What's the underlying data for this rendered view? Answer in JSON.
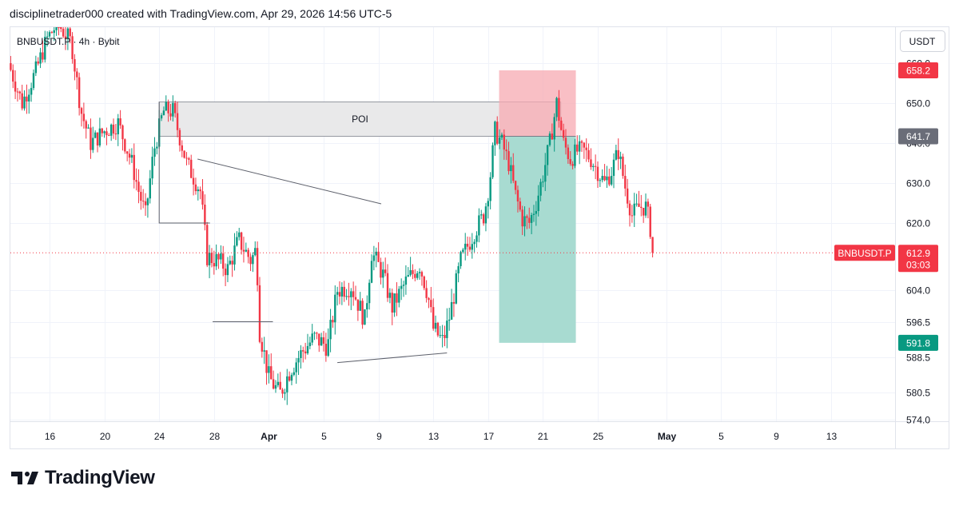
{
  "header": {
    "attribution": "disciplinetrader000 created with TradingView.com, Apr 29, 2026 14:56 UTC-5"
  },
  "footer": {
    "brand": "TradingView"
  },
  "chart_data": {
    "type": "candlestick",
    "legend": "BNBUSDT.P · 4h · Bybit",
    "currency_button": "USDT",
    "price_ticks": [
      {
        "price": 660.0,
        "label": "660.0"
      },
      {
        "price": 650.0,
        "label": "650.0"
      },
      {
        "price": 640.0,
        "label": "640.0"
      },
      {
        "price": 630.0,
        "label": "630.0"
      },
      {
        "price": 620.0,
        "label": "620.0"
      },
      {
        "price": 604.0,
        "label": "604.0"
      },
      {
        "price": 596.5,
        "label": "596.5"
      },
      {
        "price": 588.5,
        "label": "588.5"
      },
      {
        "price": 580.5,
        "label": "580.5"
      },
      {
        "price": 574.0,
        "label": "574.0"
      }
    ],
    "time_ticks": [
      {
        "day": 16,
        "label": "16"
      },
      {
        "day": 20,
        "label": "20"
      },
      {
        "day": 24,
        "label": "24"
      },
      {
        "day": 28,
        "label": "28"
      },
      {
        "day": 32,
        "label": "Apr"
      },
      {
        "day": 36,
        "label": "5"
      },
      {
        "day": 40,
        "label": "9"
      },
      {
        "day": 44,
        "label": "13"
      },
      {
        "day": 48,
        "label": "17"
      },
      {
        "day": 52,
        "label": "21"
      },
      {
        "day": 56,
        "label": "25"
      },
      {
        "day": 61,
        "label": "May"
      },
      {
        "day": 65,
        "label": "5"
      },
      {
        "day": 69,
        "label": "9"
      },
      {
        "day": 73,
        "label": "13"
      }
    ],
    "price_path": [
      [
        13.0,
        660
      ],
      [
        14.0,
        650
      ],
      [
        15.0,
        658
      ],
      [
        15.8,
        666
      ],
      [
        16.6,
        670
      ],
      [
        17.6,
        665
      ],
      [
        18.3,
        648
      ],
      [
        19.0,
        640
      ],
      [
        20.0,
        643
      ],
      [
        21.0,
        645
      ],
      [
        22.0,
        635
      ],
      [
        22.5,
        628
      ],
      [
        23.0,
        622
      ],
      [
        23.6,
        638
      ],
      [
        24.3,
        648
      ],
      [
        25.0,
        648
      ],
      [
        26.0,
        635
      ],
      [
        27.0,
        628
      ],
      [
        27.5,
        612
      ],
      [
        28.3,
        611
      ],
      [
        29.0,
        609
      ],
      [
        29.8,
        616
      ],
      [
        30.7,
        611
      ],
      [
        31.1,
        614
      ],
      [
        31.3,
        595
      ],
      [
        32.0,
        584
      ],
      [
        32.8,
        580
      ],
      [
        33.6,
        586
      ],
      [
        34.5,
        590
      ],
      [
        35.3,
        593
      ],
      [
        36.3,
        591
      ],
      [
        37.0,
        604
      ],
      [
        38.0,
        605
      ],
      [
        39.0,
        597
      ],
      [
        39.5,
        613
      ],
      [
        40.3,
        608
      ],
      [
        41.0,
        600
      ],
      [
        42.0,
        606
      ],
      [
        43.0,
        610
      ],
      [
        43.6,
        603
      ],
      [
        44.0,
        595
      ],
      [
        44.7,
        592
      ],
      [
        45.2,
        598
      ],
      [
        46.0,
        611
      ],
      [
        47.0,
        618
      ],
      [
        47.7,
        622
      ],
      [
        48.1,
        630
      ],
      [
        48.5,
        643
      ],
      [
        49.0,
        640
      ],
      [
        49.5,
        635
      ],
      [
        50.0,
        627
      ],
      [
        50.5,
        621
      ],
      [
        51.0,
        620
      ],
      [
        51.5,
        625
      ],
      [
        52.0,
        632
      ],
      [
        52.5,
        640
      ],
      [
        53.0,
        650
      ],
      [
        53.5,
        640
      ],
      [
        54.0,
        636
      ],
      [
        54.5,
        638
      ],
      [
        55.0,
        638
      ],
      [
        55.5,
        636
      ],
      [
        56.0,
        633
      ],
      [
        56.5,
        630
      ],
      [
        57.0,
        633
      ],
      [
        57.5,
        638
      ],
      [
        58.0,
        629
      ],
      [
        58.5,
        622
      ],
      [
        59.0,
        624
      ],
      [
        59.5,
        624
      ],
      [
        59.8,
        620
      ],
      [
        60.0,
        612.9
      ]
    ],
    "last_price": {
      "price": 612.9,
      "label": "612.9",
      "countdown": "03:03",
      "symbol": "BNBUSDT.P"
    },
    "price_labels": [
      {
        "price": 658.2,
        "label": "658.2",
        "color": "#f23645"
      },
      {
        "price": 641.7,
        "label": "641.7",
        "color": "#6a6d78"
      },
      {
        "price": 591.8,
        "label": "591.8",
        "color": "#089981"
      }
    ],
    "poi_zone": {
      "label": "POI",
      "top": 650.3,
      "bottom": 641.7,
      "x_start": 24.0,
      "x_end": 53.3
    },
    "position_tool": {
      "entry": 641.7,
      "stop": 658.2,
      "target": 591.8,
      "x_start": 48.8,
      "x_end": 54.4
    },
    "trend_lines": [
      [
        [
          24.0,
          650.3
        ],
        [
          24.0,
          620.0
        ],
        [
          27.7,
          620.0
        ]
      ],
      [
        [
          26.8,
          636.0
        ],
        [
          40.2,
          624.8
        ]
      ],
      [
        [
          27.9,
          596.6
        ],
        [
          32.3,
          596.6
        ]
      ],
      [
        [
          37.0,
          587.3
        ],
        [
          45.0,
          589.5
        ]
      ]
    ],
    "colors": {
      "up": "#089981",
      "down": "#f23645",
      "poi_fill": "#e9e9ea",
      "stop_fill": "#f7a9b2",
      "target_fill": "#a3d9cf"
    }
  }
}
